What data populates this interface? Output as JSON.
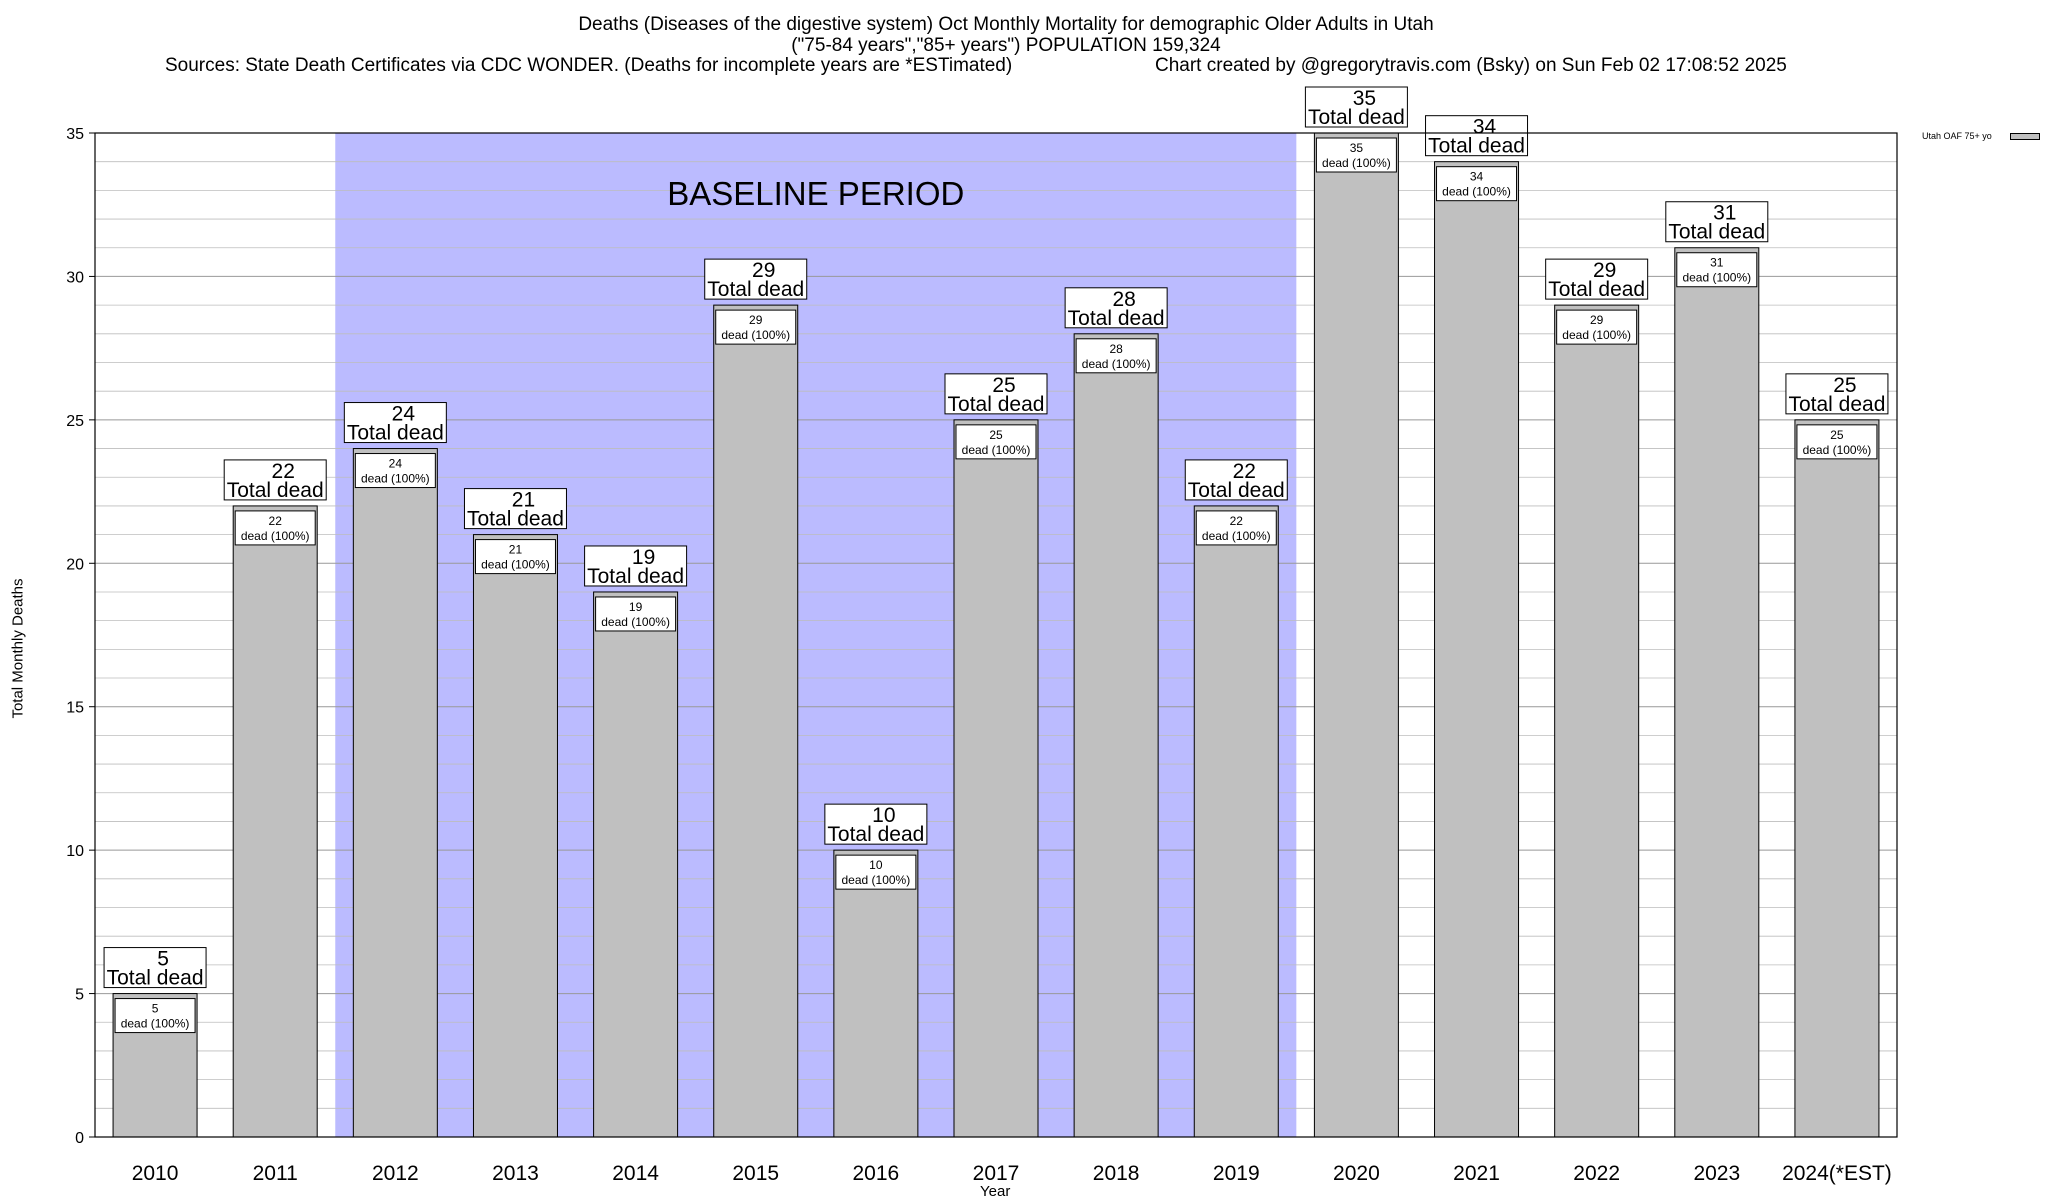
{
  "header": {
    "title_line1": "Deaths (Diseases of the digestive system) Oct Monthly Mortality for demographic Older Adults in Utah",
    "title_line2": "(\"75-84 years\",\"85+ years\") POPULATION 159,324",
    "sources": "Sources: State Death Certificates via CDC WONDER. (Deaths for incomplete years are *ESTimated)",
    "credit": "Chart created by @gregorytravis.com (Bsky) on Sun Feb 02 17:08:52 2025"
  },
  "legend": {
    "label": "Utah OAF 75+ yo",
    "swatch_color": "#c0c0c0"
  },
  "chart_data": {
    "type": "bar",
    "xlabel": "Year",
    "ylabel": "Total Monthly Deaths",
    "ylim": [
      0,
      35
    ],
    "y_ticks": [
      0,
      5,
      10,
      15,
      20,
      25,
      30,
      35
    ],
    "grid": true,
    "legend_position": "top-right",
    "categories": [
      "2010",
      "2011",
      "2012",
      "2013",
      "2014",
      "2015",
      "2016",
      "2017",
      "2018",
      "2019",
      "2020",
      "2021",
      "2022",
      "2023",
      "2024(*EST)"
    ],
    "series": [
      {
        "name": "Utah OAF 75+ yo",
        "values": [
          5,
          22,
          24,
          21,
          19,
          29,
          10,
          25,
          28,
          22,
          35,
          34,
          29,
          31,
          25
        ]
      }
    ],
    "total_label": "Total dead",
    "bar_label": "dead (100%)",
    "baseline": {
      "label": "BASELINE PERIOD",
      "start": "2012",
      "end": "2019"
    },
    "colors": {
      "bar": "#c0c0c0",
      "baseline": "#bbbbff"
    }
  }
}
